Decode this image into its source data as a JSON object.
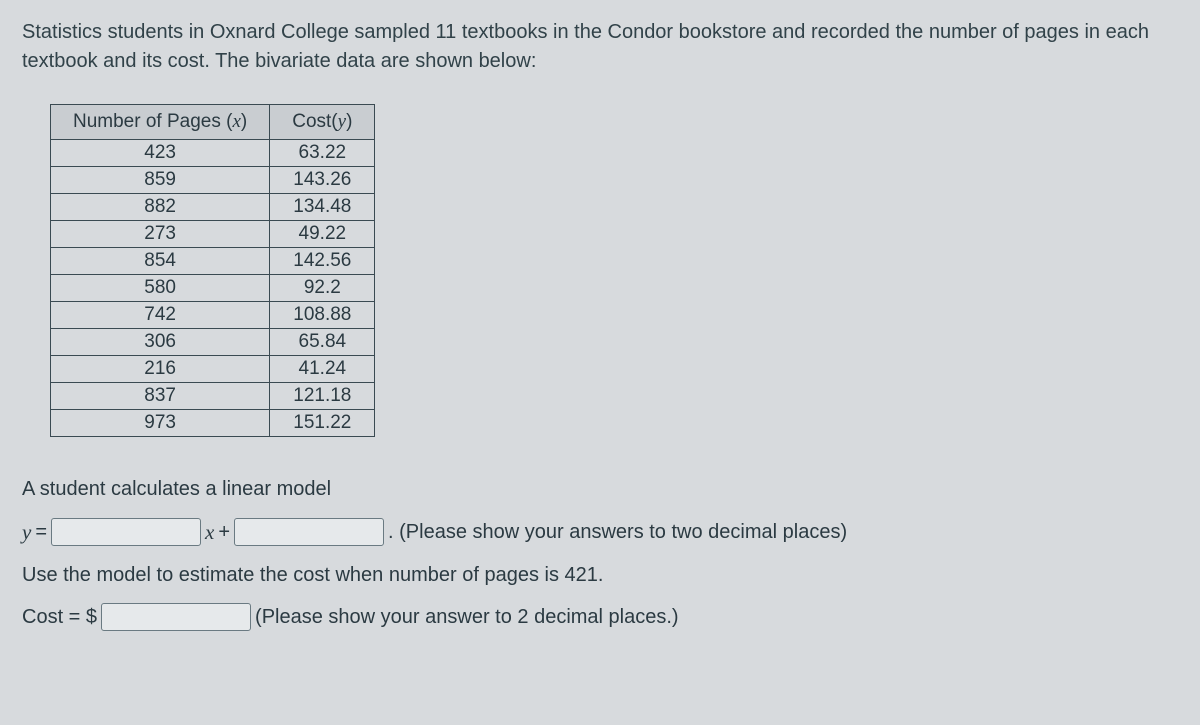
{
  "intro": "Statistics students in Oxnard College sampled 11 textbooks in the Condor bookstore and recorded the number of pages in each textbook and its cost. The bivariate data are shown below:",
  "table": {
    "header_pages_label": "Number of Pages (",
    "header_pages_var": "x",
    "header_pages_close": ")",
    "header_cost_label": "Cost(",
    "header_cost_var": "y",
    "header_cost_close": ")",
    "rows": [
      {
        "pages": "423",
        "cost": "63.22"
      },
      {
        "pages": "859",
        "cost": "143.26"
      },
      {
        "pages": "882",
        "cost": "134.48"
      },
      {
        "pages": "273",
        "cost": "49.22"
      },
      {
        "pages": "854",
        "cost": "142.56"
      },
      {
        "pages": "580",
        "cost": "92.2"
      },
      {
        "pages": "742",
        "cost": "108.88"
      },
      {
        "pages": "306",
        "cost": "65.84"
      },
      {
        "pages": "216",
        "cost": "41.24"
      },
      {
        "pages": "837",
        "cost": "121.18"
      },
      {
        "pages": "973",
        "cost": "151.22"
      }
    ]
  },
  "prompt": {
    "line1": "A student calculates a linear model",
    "y_eq": "y",
    "equals": " = ",
    "x_plus_pre": "x",
    "plus": " + ",
    "after_model": ". (Please show your answers to two decimal places)",
    "line3": "Use the model to estimate the cost when number of pages is 421.",
    "cost_label": "Cost = $",
    "after_cost": "(Please show your answer to 2 decimal places.)"
  },
  "styling": {
    "background_color": "#d7dadd",
    "text_color": "#2b3a42",
    "border_color": "#3a4a52",
    "header_bg": "#c9cdd1",
    "input_bg": "#e6e9eb",
    "font_size_body": 20,
    "font_size_table": 19
  }
}
